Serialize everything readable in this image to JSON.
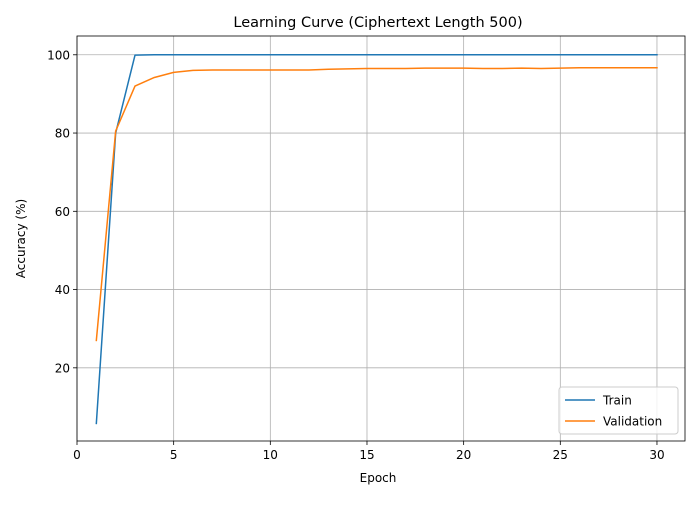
{
  "chart_data": {
    "type": "line",
    "title": "Learning Curve (Ciphertext Length 500)",
    "xlabel": "Epoch",
    "ylabel": "Accuracy (%)",
    "xlim": [
      0,
      31.45
    ],
    "ylim": [
      1.3,
      104.8
    ],
    "xticks": [
      0,
      5,
      10,
      15,
      20,
      25,
      30
    ],
    "yticks": [
      20,
      40,
      60,
      80,
      100
    ],
    "grid": true,
    "legend_position": "lower-right",
    "x": [
      1,
      2,
      3,
      4,
      5,
      6,
      7,
      8,
      9,
      10,
      11,
      12,
      13,
      14,
      15,
      16,
      17,
      18,
      19,
      20,
      21,
      22,
      23,
      24,
      25,
      26,
      27,
      28,
      29,
      30
    ],
    "series": [
      {
        "name": "Train",
        "color": "#1f77b4",
        "values": [
          5.8,
          80.0,
          99.9,
          100,
          100,
          100,
          100,
          100,
          100,
          100,
          100,
          100,
          100,
          100,
          100,
          100,
          100,
          100,
          100,
          100,
          100,
          100,
          100,
          100,
          100,
          100,
          100,
          100,
          100,
          100
        ]
      },
      {
        "name": "Validation",
        "color": "#ff7f0e",
        "values": [
          27.0,
          80.5,
          92.0,
          94.2,
          95.5,
          96.0,
          96.1,
          96.1,
          96.1,
          96.1,
          96.1,
          96.1,
          96.3,
          96.4,
          96.5,
          96.5,
          96.5,
          96.6,
          96.6,
          96.6,
          96.5,
          96.5,
          96.6,
          96.5,
          96.6,
          96.7,
          96.7,
          96.7,
          96.7,
          96.7
        ]
      }
    ]
  }
}
